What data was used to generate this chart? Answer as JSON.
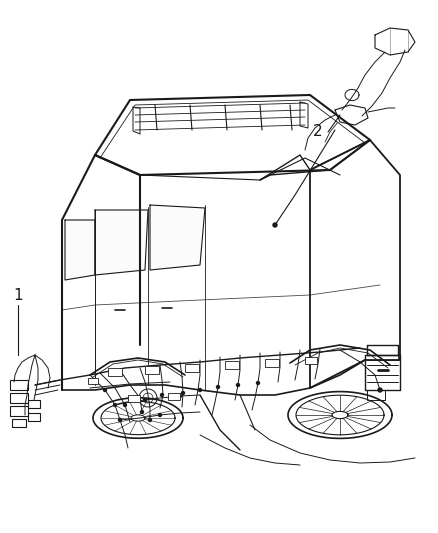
{
  "title": "",
  "background_color": "#ffffff",
  "fig_width": 4.38,
  "fig_height": 5.33,
  "dpi": 100,
  "label1_text": "1",
  "label2_text": "2",
  "line_color": "#1a1a1a",
  "gray_color": "#888888",
  "light_gray": "#cccccc"
}
